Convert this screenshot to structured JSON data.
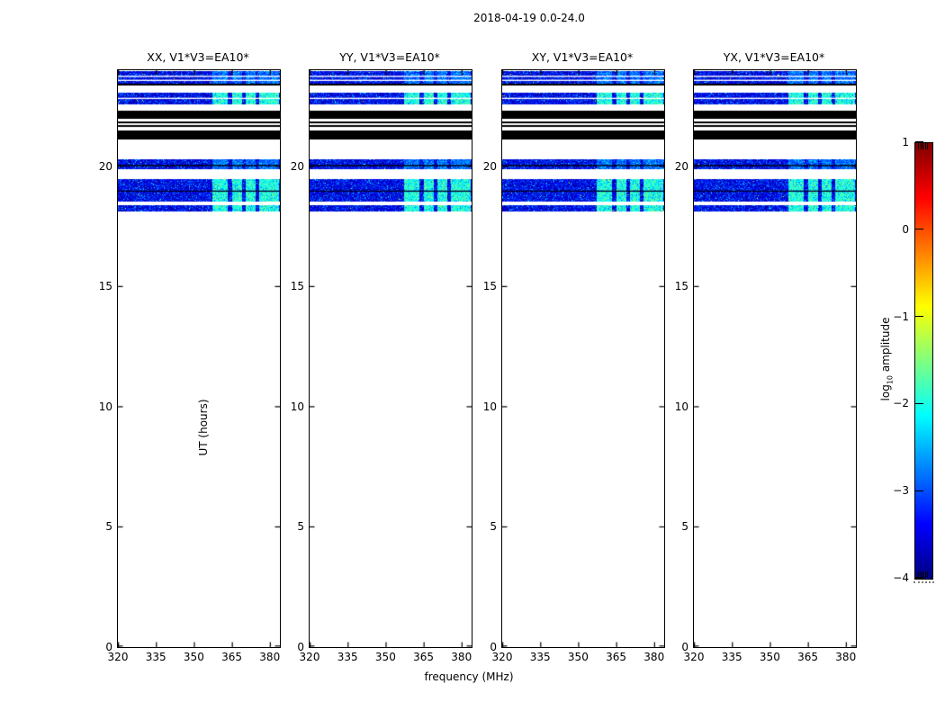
{
  "chart_data": {
    "type": "heatmap",
    "title": "2018-04-19 0.0-24.0",
    "xlabel": "frequency (MHz)",
    "ylabel": "UT (hours)",
    "xlim": [
      320,
      384
    ],
    "ylim": [
      0,
      24
    ],
    "xticks": [
      320,
      335,
      350,
      365,
      380
    ],
    "yticks": [
      0,
      5,
      10,
      15,
      20
    ],
    "grid": false,
    "panels": [
      {
        "title": "XX, V1*V3=EA10*",
        "pol": "XX"
      },
      {
        "title": "YY, V1*V3=EA10*",
        "pol": "YY"
      },
      {
        "title": "XY, V1*V3=EA10*",
        "pol": "XY"
      },
      {
        "title": "YX, V1*V3=EA10*",
        "pol": "YX"
      }
    ],
    "colorbar": {
      "label_prefix": "log",
      "label_sub": "10",
      "label_suffix": " amplitude",
      "tick_labels": [
        "1",
        "0",
        "−1",
        "−2",
        "−3",
        "−4"
      ],
      "tick_values": [
        1,
        0,
        -1,
        -2,
        -3,
        -4
      ],
      "vmin": -4,
      "vmax": 1,
      "colormap": "jet"
    },
    "time_bands": [
      {
        "t_start": 23.44,
        "t_end": 23.95,
        "kind": "noise",
        "brightness": "mild",
        "sub_lines": [
          {
            "frac": 0.35,
            "color": "#ffffff"
          },
          {
            "frac": 0.68,
            "color": "#ffffff"
          }
        ]
      },
      {
        "t_start": 23.36,
        "t_end": 23.44,
        "kind": "black",
        "sub_lines": []
      },
      {
        "t_start": 22.58,
        "t_end": 23.05,
        "kind": "noise",
        "brightness": "strong",
        "sub_lines": [
          {
            "frac": 0.42,
            "color": "#ffffff"
          }
        ]
      },
      {
        "t_start": 21.96,
        "t_end": 22.33,
        "kind": "black",
        "sub_lines": []
      },
      {
        "t_start": 21.78,
        "t_end": 21.85,
        "kind": "black",
        "sub_lines": []
      },
      {
        "t_start": 21.64,
        "t_end": 21.71,
        "kind": "black",
        "sub_lines": []
      },
      {
        "t_start": 21.12,
        "t_end": 21.5,
        "kind": "black",
        "sub_lines": []
      },
      {
        "t_start": 19.87,
        "t_end": 20.29,
        "kind": "noise",
        "brightness": "mild",
        "sub_lines": [
          {
            "frac": 0.55,
            "color": "#000000"
          }
        ]
      },
      {
        "t_start": 18.98,
        "t_end": 19.47,
        "kind": "noise",
        "brightness": "strong",
        "sub_lines": [
          {
            "frac": 0.97,
            "color": "#000030"
          }
        ]
      },
      {
        "t_start": 18.52,
        "t_end": 18.96,
        "kind": "noise",
        "brightness": "strong",
        "sub_lines": []
      },
      {
        "t_start": 18.13,
        "t_end": 18.4,
        "kind": "noise",
        "brightness": "strong",
        "sub_lines": []
      }
    ],
    "rfi_bright_region": {
      "f_start": 357.0,
      "f_end": 383.5,
      "gap_ranges": [
        [
          363.2,
          364.8
        ],
        [
          368.8,
          370.3
        ],
        [
          374.2,
          375.8
        ]
      ]
    },
    "background_value": "blank-white (no data 0-18 UT)"
  }
}
